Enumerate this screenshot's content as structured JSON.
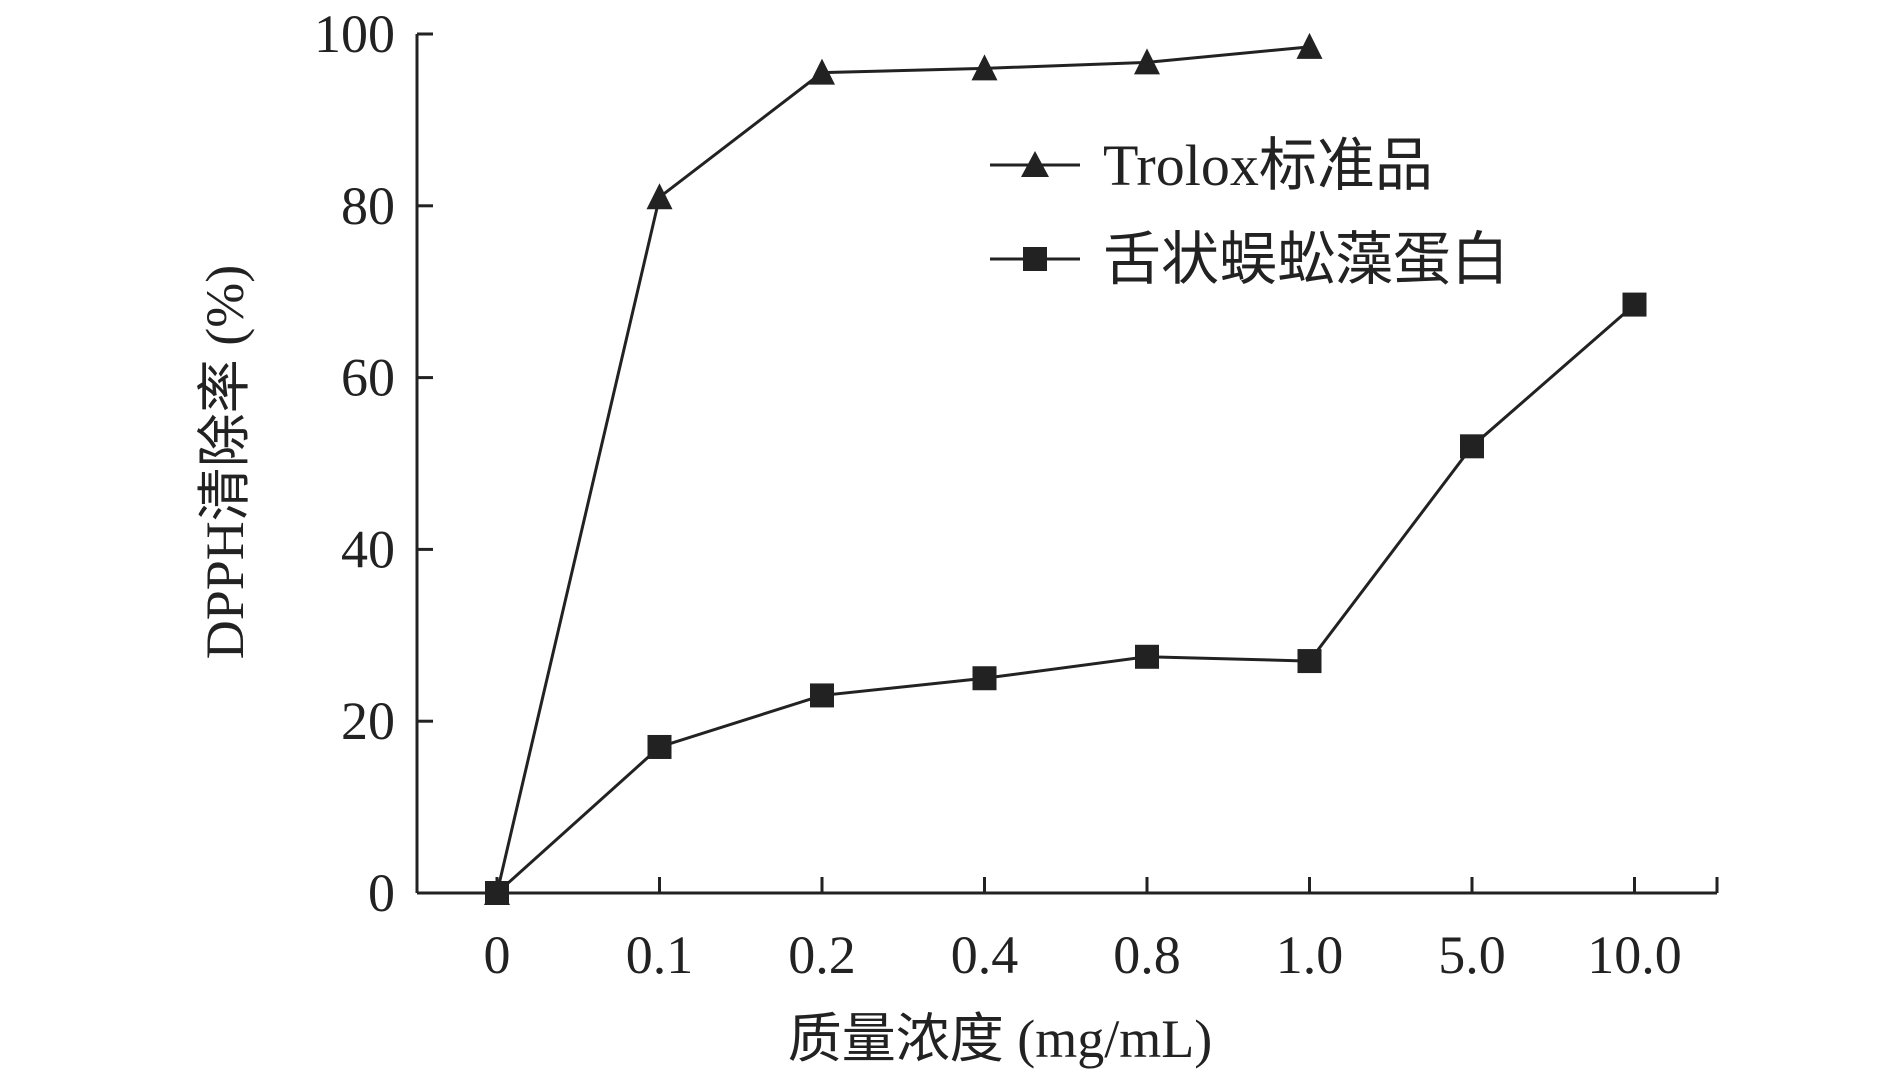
{
  "chart_data": {
    "type": "line",
    "categories": [
      "0",
      "0.1",
      "0.2",
      "0.4",
      "0.8",
      "1.0",
      "5.0",
      "10.0"
    ],
    "xlabel": "质量浓度 (mg/mL)",
    "ylabel": "DPPH清除率 (%)",
    "ylim": [
      0,
      100
    ],
    "yticks": [
      0,
      20,
      40,
      60,
      80,
      100
    ],
    "grid": false,
    "legend_position": "top-right",
    "series": [
      {
        "name": "Trolox标准品",
        "marker": "triangle",
        "values": [
          0,
          81,
          95.5,
          96,
          96.7,
          98.5,
          null,
          null
        ]
      },
      {
        "name": "舌状蜈蚣藻蛋白",
        "marker": "square",
        "values": [
          0,
          17,
          23,
          25,
          27.5,
          27,
          52,
          68.5
        ]
      }
    ],
    "colors": {
      "line": "#222222"
    }
  }
}
